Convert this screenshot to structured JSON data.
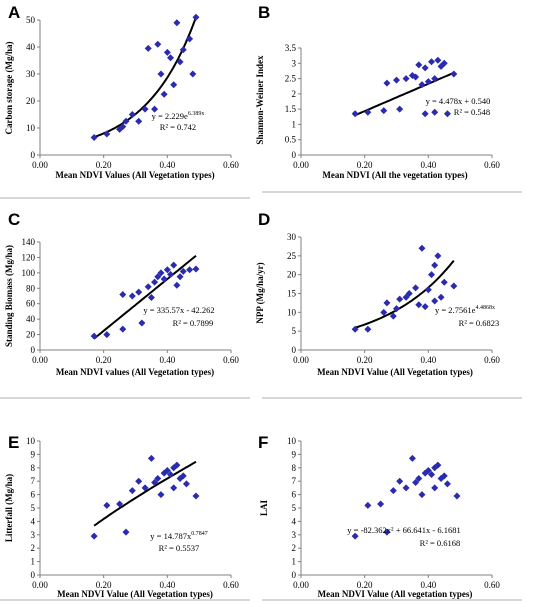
{
  "chart_data": [
    {
      "panel": "A",
      "type": "scatter",
      "xlabel": "Mean NDVI Values (All Vegetation types)",
      "ylabel": "Carbon storage (Mg/ha)",
      "xlim": [
        0,
        0.6
      ],
      "ylim": [
        0,
        50
      ],
      "xticks": [
        "0.00",
        "0.20",
        "0.40",
        "0.60"
      ],
      "yticks": [
        "0",
        "10",
        "20",
        "30",
        "40",
        "50"
      ],
      "points": [
        [
          0.17,
          6.5
        ],
        [
          0.21,
          7.8
        ],
        [
          0.25,
          9.5
        ],
        [
          0.26,
          10.5
        ],
        [
          0.27,
          12.5
        ],
        [
          0.29,
          15
        ],
        [
          0.31,
          12.5
        ],
        [
          0.33,
          17
        ],
        [
          0.34,
          39.5
        ],
        [
          0.36,
          17
        ],
        [
          0.37,
          41
        ],
        [
          0.38,
          30
        ],
        [
          0.39,
          22.5
        ],
        [
          0.4,
          38
        ],
        [
          0.41,
          36
        ],
        [
          0.42,
          26
        ],
        [
          0.43,
          49
        ],
        [
          0.44,
          34.5
        ],
        [
          0.45,
          39
        ],
        [
          0.47,
          43
        ],
        [
          0.48,
          30
        ],
        [
          0.49,
          51
        ]
      ],
      "trend": "exponential",
      "equation": "y = 2.229e6.389x",
      "r2": "R² = 0.742"
    },
    {
      "panel": "B",
      "type": "scatter",
      "xlabel": "Mean NDVI (All the vegetation types)",
      "ylabel": "Shannon-Weiner Index",
      "xlim": [
        0,
        0.6
      ],
      "ylim": [
        0,
        3.5
      ],
      "xticks": [
        "0.00",
        "0.20",
        "0.40",
        "0.60"
      ],
      "yticks": [
        "0",
        "0.5",
        "1",
        "1.5",
        "2",
        "2.5",
        "3",
        "3.5"
      ],
      "points": [
        [
          0.17,
          1.35
        ],
        [
          0.21,
          1.4
        ],
        [
          0.26,
          1.45
        ],
        [
          0.27,
          2.35
        ],
        [
          0.3,
          2.45
        ],
        [
          0.31,
          1.5
        ],
        [
          0.33,
          2.5
        ],
        [
          0.35,
          2.6
        ],
        [
          0.36,
          2.55
        ],
        [
          0.37,
          2.95
        ],
        [
          0.38,
          2.3
        ],
        [
          0.39,
          2.85
        ],
        [
          0.39,
          1.35
        ],
        [
          0.4,
          2.4
        ],
        [
          0.41,
          3.05
        ],
        [
          0.42,
          1.4
        ],
        [
          0.42,
          2.5
        ],
        [
          0.43,
          3.1
        ],
        [
          0.44,
          2.9
        ],
        [
          0.45,
          3.0
        ],
        [
          0.46,
          1.35
        ],
        [
          0.48,
          2.65
        ]
      ],
      "trend": "linear",
      "equation": "y = 4.478x + 0.540",
      "r2": "R² = 0.548"
    },
    {
      "panel": "C",
      "type": "scatter",
      "xlabel": "Mean NDVI values (All Vegetation types)",
      "ylabel": "Standing Biomass (Mg/ha)",
      "xlim": [
        0,
        0.6
      ],
      "ylim": [
        0,
        140
      ],
      "xticks": [
        "0.00",
        "0.20",
        "0.40",
        "0.60"
      ],
      "yticks": [
        "0",
        "20",
        "40",
        "60",
        "80",
        "100",
        "120",
        "140"
      ],
      "points": [
        [
          0.17,
          18
        ],
        [
          0.21,
          20
        ],
        [
          0.26,
          27
        ],
        [
          0.26,
          72
        ],
        [
          0.29,
          70
        ],
        [
          0.31,
          75
        ],
        [
          0.32,
          35
        ],
        [
          0.34,
          82
        ],
        [
          0.35,
          68
        ],
        [
          0.36,
          88
        ],
        [
          0.37,
          95
        ],
        [
          0.38,
          100
        ],
        [
          0.39,
          92
        ],
        [
          0.4,
          104
        ],
        [
          0.41,
          98
        ],
        [
          0.42,
          110
        ],
        [
          0.43,
          84
        ],
        [
          0.44,
          95
        ],
        [
          0.45,
          102
        ],
        [
          0.47,
          104
        ],
        [
          0.49,
          105
        ]
      ],
      "trend": "linear",
      "equation": "y = 335.57x - 42.262",
      "r2": "R² = 0.7899"
    },
    {
      "panel": "D",
      "type": "scatter",
      "xlabel": "Mean NDVI Value (All Vegetation types)",
      "ylabel": "NPP (Mg/ha/yr)",
      "xlim": [
        0,
        0.6
      ],
      "ylim": [
        0,
        30
      ],
      "xticks": [
        "0.00",
        "0.20",
        "0.40",
        "0.60"
      ],
      "yticks": [
        "0",
        "5",
        "10",
        "15",
        "20",
        "25",
        "30"
      ],
      "points": [
        [
          0.17,
          5.5
        ],
        [
          0.21,
          5.5
        ],
        [
          0.26,
          10
        ],
        [
          0.27,
          12.5
        ],
        [
          0.29,
          9
        ],
        [
          0.3,
          11
        ],
        [
          0.31,
          13.5
        ],
        [
          0.33,
          14
        ],
        [
          0.34,
          15
        ],
        [
          0.36,
          16.5
        ],
        [
          0.37,
          12
        ],
        [
          0.38,
          27
        ],
        [
          0.39,
          11.5
        ],
        [
          0.4,
          16
        ],
        [
          0.41,
          20
        ],
        [
          0.42,
          13
        ],
        [
          0.42,
          22.5
        ],
        [
          0.43,
          25
        ],
        [
          0.44,
          14
        ],
        [
          0.45,
          18
        ],
        [
          0.48,
          17
        ]
      ],
      "trend": "exponential",
      "equation": "y = 2.7561e4.4868x",
      "r2": "R² = 0.6823"
    },
    {
      "panel": "E",
      "type": "scatter",
      "xlabel": "Mean NDVI Value (All Vegetation types)",
      "ylabel": "Litterfall (Mg/ha)",
      "xlim": [
        0,
        0.6
      ],
      "ylim": [
        0,
        10
      ],
      "xticks": [
        "0.00",
        "0.20",
        "0.40",
        "0.60"
      ],
      "yticks": [
        "0",
        "1",
        "2",
        "3",
        "4",
        "5",
        "6",
        "7",
        "8",
        "9",
        "10"
      ],
      "points": [
        [
          0.17,
          2.9
        ],
        [
          0.21,
          5.2
        ],
        [
          0.25,
          5.3
        ],
        [
          0.27,
          3.2
        ],
        [
          0.29,
          6.3
        ],
        [
          0.31,
          7.0
        ],
        [
          0.33,
          6.5
        ],
        [
          0.35,
          8.7
        ],
        [
          0.36,
          6.9
        ],
        [
          0.37,
          7.2
        ],
        [
          0.38,
          6.0
        ],
        [
          0.39,
          7.6
        ],
        [
          0.4,
          7.8
        ],
        [
          0.41,
          7.5
        ],
        [
          0.42,
          8.0
        ],
        [
          0.42,
          6.5
        ],
        [
          0.43,
          8.2
        ],
        [
          0.44,
          7.2
        ],
        [
          0.45,
          7.4
        ],
        [
          0.46,
          6.8
        ],
        [
          0.49,
          5.9
        ]
      ],
      "trend": "power",
      "equation": "y = 14.787x0.7847",
      "r2": "R² = 0.5537"
    },
    {
      "panel": "F",
      "type": "scatter",
      "xlabel": "Mean NDVI Value (All vegetation types)",
      "ylabel": "LAI",
      "xlim": [
        0,
        0.6
      ],
      "ylim": [
        0,
        10
      ],
      "xticks": [
        "0.00",
        "0.20",
        "0.40",
        "0.60"
      ],
      "yticks": [
        "0",
        "1",
        "2",
        "3",
        "4",
        "5",
        "6",
        "7",
        "8",
        "9",
        "10"
      ],
      "points": [
        [
          0.17,
          2.9
        ],
        [
          0.21,
          5.2
        ],
        [
          0.25,
          5.3
        ],
        [
          0.27,
          3.2
        ],
        [
          0.29,
          6.3
        ],
        [
          0.31,
          7.0
        ],
        [
          0.33,
          6.5
        ],
        [
          0.35,
          8.7
        ],
        [
          0.36,
          6.9
        ],
        [
          0.37,
          7.2
        ],
        [
          0.38,
          6.0
        ],
        [
          0.39,
          7.6
        ],
        [
          0.4,
          7.8
        ],
        [
          0.41,
          7.5
        ],
        [
          0.42,
          8.0
        ],
        [
          0.42,
          6.5
        ],
        [
          0.43,
          8.2
        ],
        [
          0.44,
          7.2
        ],
        [
          0.45,
          7.4
        ],
        [
          0.46,
          6.8
        ],
        [
          0.49,
          5.9
        ]
      ],
      "trend": "quadratic",
      "equation": "y = -82.362x² + 66.641x - 6.1681",
      "r2": "R² = 0.6168"
    }
  ],
  "colors": {
    "marker": "#2b2bb0",
    "trend": "#000000",
    "axis": "#808080"
  }
}
